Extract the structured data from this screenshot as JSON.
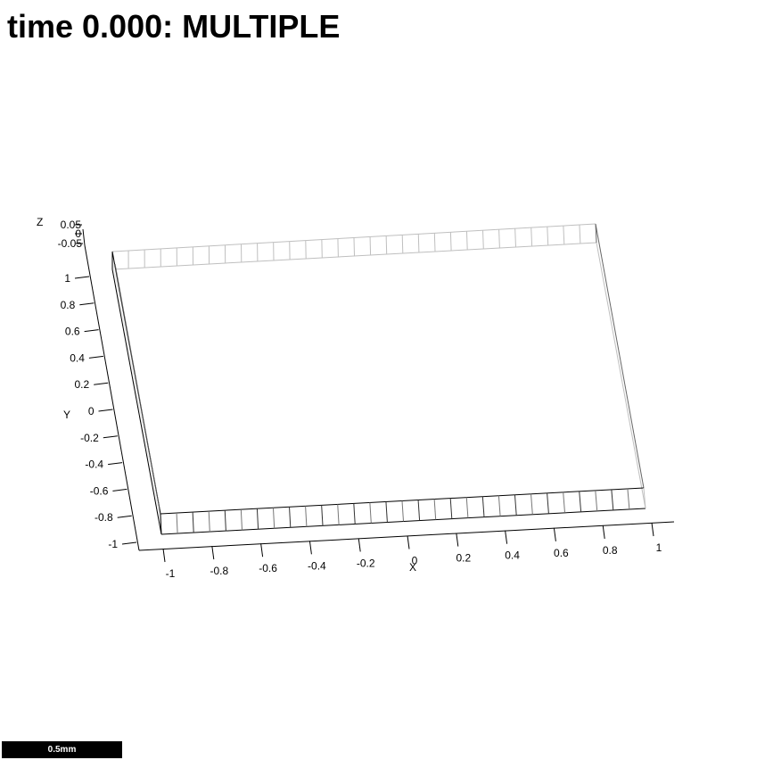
{
  "title": "time 0.000: MULTIPLE",
  "axes": {
    "x": {
      "label": "X",
      "ticks": [
        "-1",
        "-0.8",
        "-0.6",
        "-0.4",
        "-0.2",
        "0",
        "0.2",
        "0.4",
        "0.6",
        "0.8",
        "1"
      ]
    },
    "y": {
      "label": "Y",
      "ticks": [
        "-1",
        "-0.8",
        "-0.6",
        "-0.4",
        "-0.2",
        "0",
        "0.2",
        "0.4",
        "0.6",
        "0.8",
        "1"
      ]
    },
    "z": {
      "label": "Z",
      "ticks": [
        "0.05",
        "0",
        "-0.05"
      ]
    }
  },
  "scalebar": {
    "label": "0.5mm"
  },
  "colors": {
    "background": "#ffffff",
    "ink": "#000000",
    "edge_light": "#bfbfbf"
  }
}
